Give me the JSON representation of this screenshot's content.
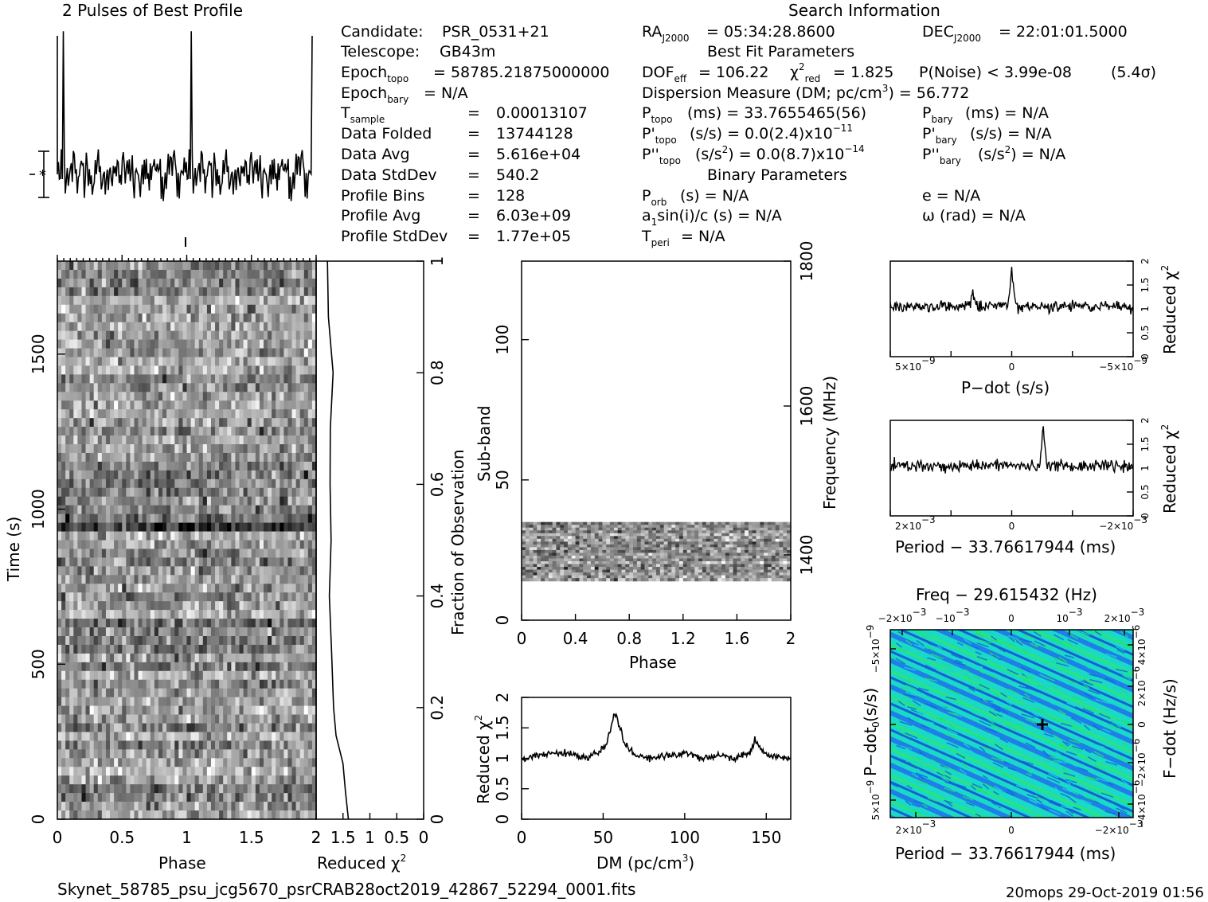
{
  "header": {
    "profile_title": "2 Pulses of Best Profile",
    "search_title": "Search Information",
    "best_fit_title": "Best Fit Parameters",
    "binary_title": "Binary Parameters",
    "footer_file": "Skynet_58785_psu_jcg5670_psrCRAB28oct2019_42867_52294_0001.fits",
    "footer_stamp": "20mops 29-Oct-2019 01:56"
  },
  "info": {
    "candidate_label": "Candidate:",
    "candidate_value": "PSR_0531+21",
    "telescope_label": "Telescope:",
    "telescope_value": "GB43m",
    "epoch_topo_label": "Epoch",
    "epoch_topo_sub": "topo",
    "epoch_topo_value": "= 58785.21875000000",
    "epoch_bary_label": "Epoch",
    "epoch_bary_sub": "bary",
    "epoch_bary_value": "= N/A",
    "tsample_label": "T",
    "tsample_sub": "sample",
    "tsample_eq": "=",
    "tsample_value": "0.00013107",
    "folded_label": "Data Folded",
    "folded_eq": "=",
    "folded_value": "13744128",
    "avg_label": "Data Avg",
    "avg_eq": "=",
    "avg_value": "5.616e+04",
    "std_label": "Data StdDev",
    "std_eq": "=",
    "std_value": "540.2",
    "bins_label": "Profile Bins",
    "bins_eq": "=",
    "bins_value": "128",
    "pavg_label": "Profile Avg",
    "pavg_eq": "=",
    "pavg_value": "6.03e+09",
    "pstd_label": "Profile StdDev",
    "pstd_eq": "=",
    "pstd_value": "1.77e+05"
  },
  "search": {
    "ra_label": "RA",
    "ra_sub": "J2000",
    "ra_value": "= 05:34:28.8600",
    "dec_label": "DEC",
    "dec_sub": "J2000",
    "dec_value": "= 22:01:01.5000",
    "dof_label": "DOF",
    "dof_sub": "eff",
    "dof_value": "= 106.22",
    "chi_sym": "χ",
    "chi_sup": "2",
    "chi_sub": "red",
    "chi_value": "= 1.825",
    "pnoise": "P(Noise) < 3.99e-08",
    "sigma": "(5.4σ)",
    "dm_text_a": "Dispersion Measure (DM; pc/cm",
    "dm_text_sup": "3",
    "dm_text_b": ") = 56.772",
    "ptopo_label": "P",
    "ptopo_sub": "topo",
    "ptopo_value": "(ms) =  33.7655465(56)",
    "pbary_label": "P",
    "pbary_sub": "bary",
    "pbary_value": "(ms) = N/A",
    "pdtopo_label": "P'",
    "pdtopo_sub": "topo",
    "pdtopo_value": "(s/s) = 0.0(2.4)x10",
    "pdtopo_exp": "−11",
    "pdbary_label": "P'",
    "pdbary_sub": "bary",
    "pdbary_value": "(s/s) = N/A",
    "pddtopo_label": "P''",
    "pddtopo_sub": "topo",
    "pddtopo_value_a": "(s/s",
    "pddtopo_value_sup": "2",
    "pddtopo_value_b": ") = 0.0(8.7)x10",
    "pddtopo_exp": "−14",
    "pddbary_label": "P''",
    "pddbary_sub": "bary",
    "pddbary_value_a": "(s/s",
    "pddbary_value_sup": "2",
    "pddbary_value_b": ") = N/A",
    "porb_label": "P",
    "porb_sub": "orb",
    "porb_value": "(s) = N/A",
    "asini_a": "a",
    "asini_sub": "1",
    "asini_b": "sin(i)/c (s) = N/A",
    "tperi_label": "T",
    "tperi_sub": "peri",
    "tperi_value": "= N/A",
    "e_text": "e = N/A",
    "omega_text": "ω (rad) = N/A"
  },
  "chart_data": [
    {
      "id": "profile",
      "type": "line",
      "title": "2 Pulses of Best Profile",
      "x_range": [
        0,
        2
      ],
      "n_bins": 128,
      "pulses": 2,
      "peak_phase": 0.05,
      "peak_relative_height": 3.1,
      "noise_relative_sigma": 0.55
    },
    {
      "id": "time-phase",
      "type": "heatmap",
      "xlabel": "Phase",
      "ylabel": "Time (s)",
      "right_ylabel": "Fraction of Observation",
      "xlim": [
        0,
        2
      ],
      "ylim": [
        0,
        1800
      ],
      "right_ylim": [
        0,
        1
      ],
      "x_ticks": [
        "0",
        "0.5",
        "1",
        "1.5",
        "2"
      ],
      "y_ticks": [
        "0",
        "500",
        "1000",
        "1500"
      ],
      "right_ticks": [
        "0",
        "0.2",
        "0.4",
        "0.6",
        "0.8",
        "1"
      ],
      "colormap": "grayscale"
    },
    {
      "id": "time-chi2",
      "type": "line",
      "xlabel_a": "Reduced ",
      "xlabel_chi": "χ",
      "xlabel_sup": "2",
      "x_reversed": true,
      "x_ticks": [
        "2",
        "1.5",
        "1",
        "0.5",
        "0"
      ],
      "points_fraction": [
        0.0,
        0.05,
        0.1,
        0.15,
        0.2,
        0.3,
        0.4,
        0.5,
        0.6,
        0.7,
        0.8,
        0.9,
        1.0
      ],
      "points_chi2": [
        1.4,
        1.44,
        1.49,
        1.62,
        1.67,
        1.71,
        1.74,
        1.73,
        1.73,
        1.75,
        1.7,
        1.78,
        1.79
      ]
    },
    {
      "id": "subband-phase",
      "type": "heatmap",
      "xlabel": "Phase",
      "ylabel": "Sub-band",
      "right_ylabel": "Frequency (MHz)",
      "xlim": [
        0,
        2
      ],
      "ylim": [
        0,
        128
      ],
      "x_ticks": [
        "0",
        "0.4",
        "0.8",
        "1.2",
        "1.6",
        "2"
      ],
      "y_ticks": [
        "0",
        "50",
        "100"
      ],
      "right_ticks": [
        "1400",
        "1600",
        "1800"
      ],
      "filled_subbands": [
        14,
        35
      ],
      "colormap": "grayscale"
    },
    {
      "id": "dm-chi2",
      "type": "line",
      "xlabel_a": "DM (pc/cm",
      "xlabel_sup": "3",
      "xlabel_b": ")",
      "ylabel_a": "Reduced ",
      "ylabel_chi": "χ",
      "ylabel_sup": "2",
      "xlim": [
        0,
        165
      ],
      "ylim": [
        0,
        2
      ],
      "x_ticks": [
        "0",
        "50",
        "100",
        "150"
      ],
      "y_ticks": [
        "0",
        "0.5",
        "1",
        "1.5",
        "2"
      ],
      "x": [
        0,
        10,
        20,
        30,
        40,
        50,
        52,
        55,
        57,
        60,
        63,
        70,
        80,
        90,
        100,
        110,
        120,
        130,
        140,
        143,
        150,
        160,
        165
      ],
      "y": [
        1.0,
        1.05,
        1.1,
        1.08,
        1.0,
        1.15,
        1.25,
        1.5,
        1.75,
        1.55,
        1.25,
        1.05,
        1.0,
        1.05,
        1.1,
        1.0,
        1.05,
        1.0,
        1.1,
        1.3,
        1.05,
        1.0,
        1.02
      ]
    },
    {
      "id": "pdot-chi2",
      "type": "line",
      "xlabel": "P−dot (s/s)",
      "ylabel_a": "Reduced ",
      "ylabel_chi": "χ",
      "ylabel_sup": "2",
      "x_reversed": true,
      "x_tick_left_a": "5×10",
      "x_tick_left_sup": "−9",
      "x_tick_mid": "0",
      "x_tick_right_a": "−5×10",
      "x_tick_right_sup": "−9",
      "y_ticks": [
        "0",
        "0.5",
        "1",
        "1.5",
        "2"
      ],
      "ylim": [
        0,
        2
      ],
      "peaks_fraction": [
        0.34,
        0.5
      ],
      "peak_values": [
        1.3,
        1.8
      ],
      "baseline": 1.05
    },
    {
      "id": "period-chi2",
      "type": "line",
      "xlabel": "Period − 33.76617944 (ms)",
      "ylabel_a": "Reduced ",
      "ylabel_chi": "χ",
      "ylabel_sup": "2",
      "x_tick_left_a": "2×10",
      "x_tick_left_sup": "−3",
      "x_tick_mid": "0",
      "x_tick_right_a": "−2×10",
      "x_tick_right_sup": "−3",
      "y_ticks": [
        "0",
        "0.5",
        "1",
        "1.5",
        "2"
      ],
      "ylim": [
        0,
        2
      ],
      "peaks_fraction": [
        0.63
      ],
      "peak_values": [
        1.78
      ],
      "baseline": 1.05
    },
    {
      "id": "pp-dot-plane",
      "type": "heatmap",
      "title": "Freq − 29.615432 (Hz)",
      "xlabel": "Period − 33.76617944 (ms)",
      "ylabel": "P−dot (s/s)",
      "right_ylabel": "F−dot (Hz/s)",
      "top_ticks": [
        {
          "a": "−2×10",
          "sup": "−3"
        },
        {
          "a": "−10",
          "sup": "−3"
        },
        {
          "a": "0",
          "sup": ""
        },
        {
          "a": "10",
          "sup": "−3"
        },
        {
          "a": "2×10",
          "sup": "−3"
        }
      ],
      "bottom_ticks": [
        {
          "a": "2×10",
          "sup": "−3"
        },
        {
          "a": "0",
          "sup": ""
        },
        {
          "a": "−2×10",
          "sup": "−3"
        }
      ],
      "left_ticks": [
        {
          "a": "−5×10",
          "sup": "−9"
        },
        {
          "a": "0",
          "sup": ""
        },
        {
          "a": "5×10",
          "sup": "−9"
        }
      ],
      "right_ticks": [
        {
          "a": "4×10",
          "sup": "−6"
        },
        {
          "a": "2×10",
          "sup": "−6"
        },
        {
          "a": "0",
          "sup": ""
        },
        {
          "a": "−2×10",
          "sup": "−6"
        },
        {
          "a": "−4×10",
          "sup": "−6"
        }
      ],
      "best_fit_marker_fraction": [
        0.63,
        0.5
      ],
      "colors": [
        "#1565e0",
        "#16d3d8",
        "#1fe06a"
      ]
    }
  ]
}
